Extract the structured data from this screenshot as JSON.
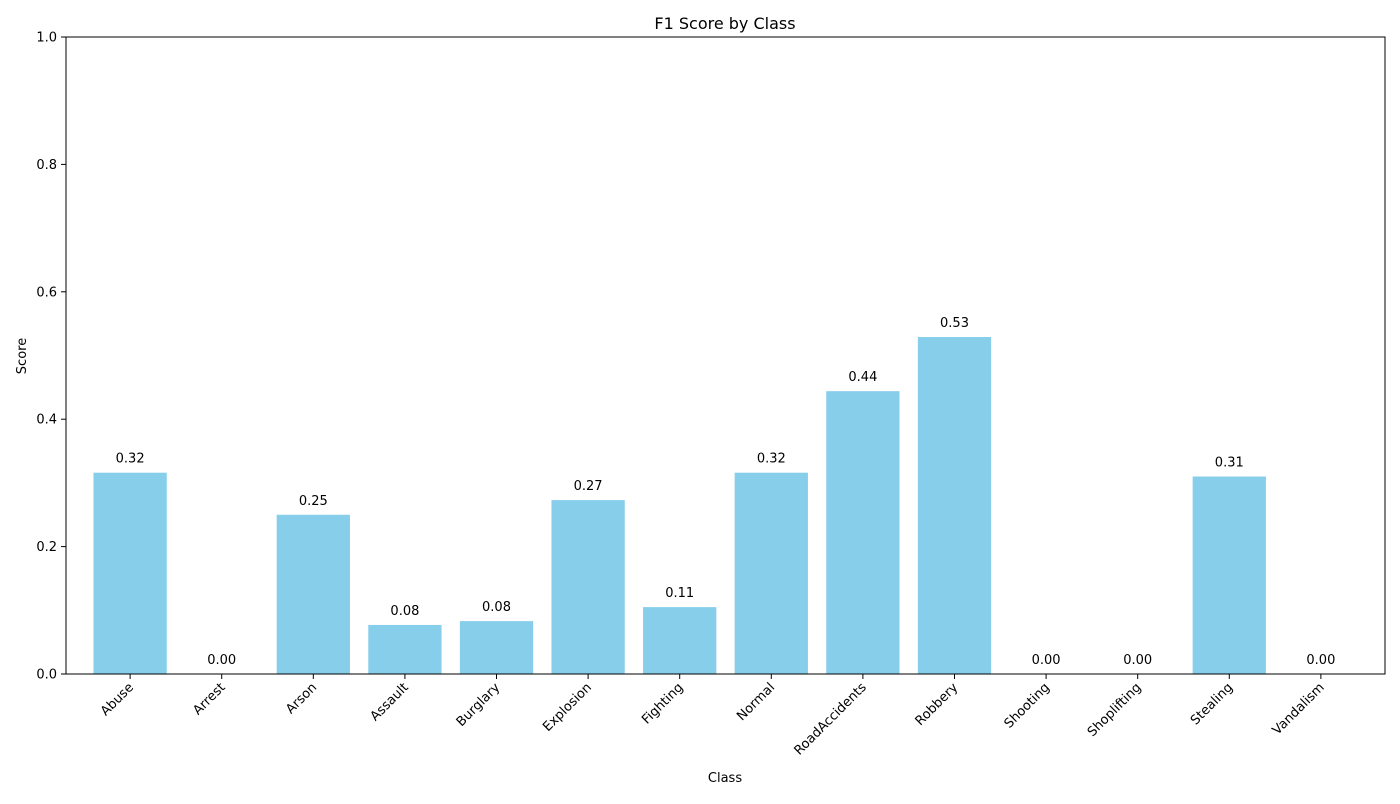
{
  "chart_data": {
    "type": "bar",
    "title": "F1 Score by Class",
    "xlabel": "Class",
    "ylabel": "Score",
    "ylim": [
      0,
      1.0
    ],
    "yticks": [
      "0.0",
      "0.2",
      "0.4",
      "0.6",
      "0.8",
      "1.0"
    ],
    "ytick_values": [
      0,
      0.2,
      0.4,
      0.6,
      0.8,
      1.0
    ],
    "categories": [
      "Abuse",
      "Arrest",
      "Arson",
      "Assault",
      "Burglary",
      "Explosion",
      "Fighting",
      "Normal",
      "RoadAccidents",
      "Robbery",
      "Shooting",
      "Shoplifting",
      "Stealing",
      "Vandalism"
    ],
    "values": [
      0.316,
      0.0,
      0.25,
      0.077,
      0.083,
      0.273,
      0.105,
      0.316,
      0.444,
      0.529,
      0.0,
      0.0,
      0.31,
      0.0
    ],
    "data_labels": [
      "0.32",
      "0.00",
      "0.25",
      "0.08",
      "0.08",
      "0.27",
      "0.11",
      "0.32",
      "0.44",
      "0.53",
      "0.00",
      "0.00",
      "0.31",
      "0.00"
    ],
    "bar_color": "#87CEEB",
    "grid": false,
    "legend": "none"
  }
}
